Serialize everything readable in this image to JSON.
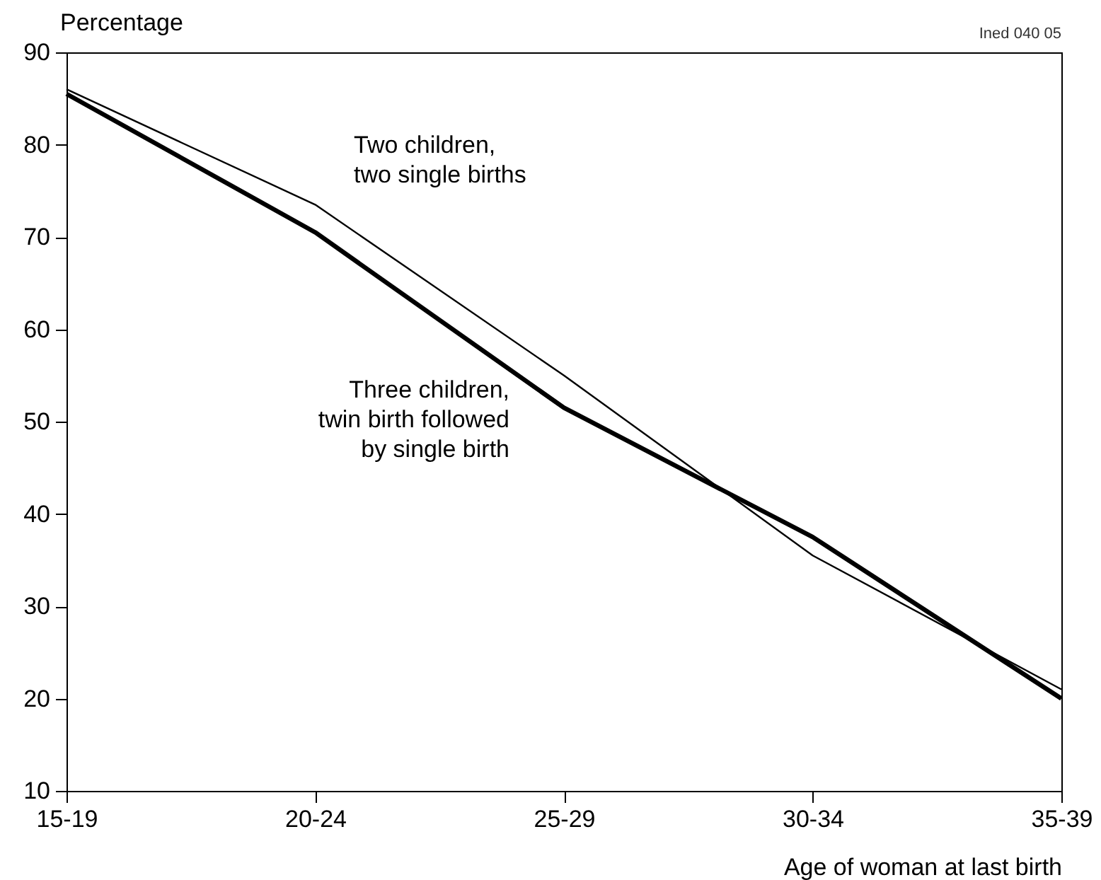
{
  "chart_data": {
    "type": "line",
    "xlabel": "Age of woman at last birth",
    "ylabel": "Percentage",
    "annotations": [
      "Ined 040 05"
    ],
    "categories": [
      "15-19",
      "20-24",
      "25-29",
      "30-34",
      "35-39"
    ],
    "ylim": [
      10,
      90
    ],
    "yticks": [
      10,
      20,
      30,
      40,
      50,
      60,
      70,
      80,
      90
    ],
    "grid": false,
    "series": [
      {
        "name": "Two children,\ntwo single births",
        "color": "#000000",
        "values": [
          86,
          73.5,
          55,
          35.5,
          21
        ]
      },
      {
        "name": "Three children,\ntwin birth followed\nby single birth",
        "color": "#000000",
        "values": [
          85.5,
          70.5,
          51.5,
          37.5,
          20
        ]
      }
    ]
  }
}
